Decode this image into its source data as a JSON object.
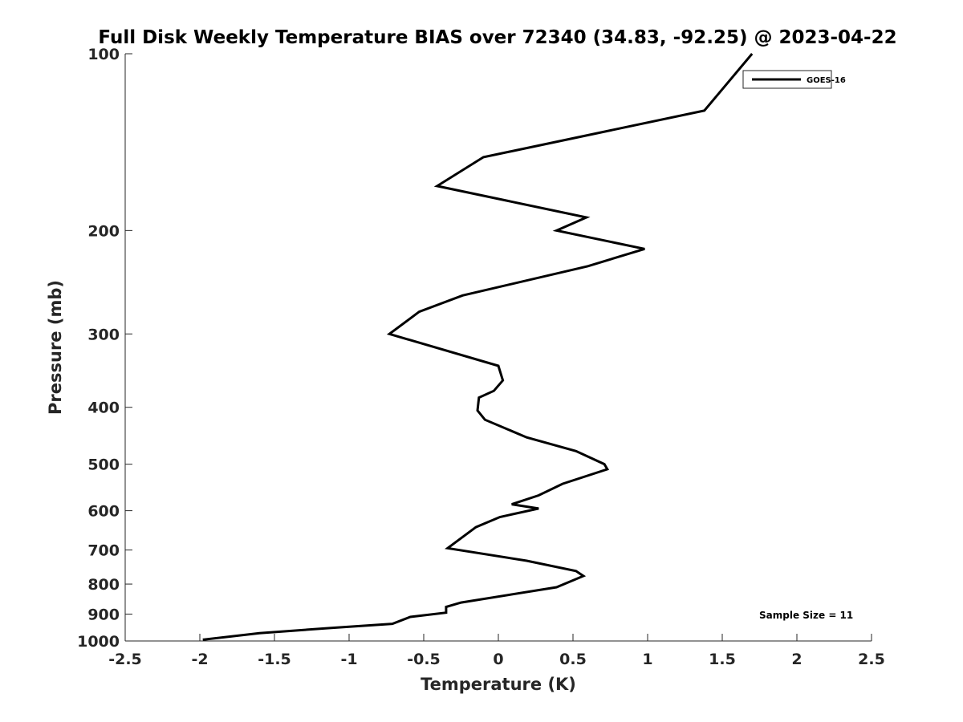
{
  "chart_data": {
    "type": "line",
    "title": "Full Disk Weekly Temperature BIAS over 72340 (34.83, -92.25) @ 2023-04-22",
    "xlabel": "Temperature (K)",
    "ylabel": "Pressure (mb)",
    "xlim": [
      -2.5,
      2.5
    ],
    "ylim": [
      100,
      1000
    ],
    "yscale": "log",
    "yreversed": true,
    "grid": false,
    "xticks": [
      -2.5,
      -2,
      -1.5,
      -1,
      -0.5,
      0,
      0.5,
      1,
      1.5,
      2,
      2.5
    ],
    "xtick_labels": [
      "-2.5",
      "-2",
      "-1.5",
      "-1",
      "-0.5",
      "0",
      "0.5",
      "1",
      "1.5",
      "2",
      "2.5"
    ],
    "yticks": [
      100,
      200,
      300,
      400,
      500,
      600,
      700,
      800,
      900,
      1000
    ],
    "ytick_labels": [
      "100",
      "200",
      "300",
      "400",
      "500",
      "600",
      "700",
      "800",
      "900",
      "1000"
    ],
    "legend_position": "top-right",
    "series": [
      {
        "name": "GOES-16",
        "color": "#000000",
        "points": [
          [
            1.7,
            100
          ],
          [
            1.38,
            125
          ],
          [
            -0.1,
            150
          ],
          [
            -0.41,
            168
          ],
          [
            0.59,
            190
          ],
          [
            0.39,
            200
          ],
          [
            0.98,
            215
          ],
          [
            0.6,
            230
          ],
          [
            -0.24,
            258
          ],
          [
            -0.53,
            275
          ],
          [
            -0.73,
            300
          ],
          [
            0.0,
            340
          ],
          [
            0.03,
            360
          ],
          [
            -0.03,
            375
          ],
          [
            -0.13,
            385
          ],
          [
            -0.14,
            405
          ],
          [
            -0.09,
            420
          ],
          [
            0.19,
            450
          ],
          [
            0.52,
            475
          ],
          [
            0.71,
            500
          ],
          [
            0.73,
            510
          ],
          [
            0.43,
            540
          ],
          [
            0.27,
            565
          ],
          [
            0.09,
            585
          ],
          [
            0.27,
            595
          ],
          [
            0.01,
            615
          ],
          [
            -0.15,
            640
          ],
          [
            -0.34,
            695
          ],
          [
            0.19,
            730
          ],
          [
            0.52,
            760
          ],
          [
            0.57,
            775
          ],
          [
            0.39,
            810
          ],
          [
            -0.25,
            860
          ],
          [
            -0.35,
            875
          ],
          [
            -0.35,
            895
          ],
          [
            -0.59,
            910
          ],
          [
            -0.71,
            935
          ],
          [
            -1.12,
            950
          ],
          [
            -1.6,
            970
          ],
          [
            -1.98,
            995
          ]
        ]
      }
    ],
    "annotations": [
      {
        "text": "Sample Size = 11",
        "position": "bottom-right"
      }
    ]
  }
}
